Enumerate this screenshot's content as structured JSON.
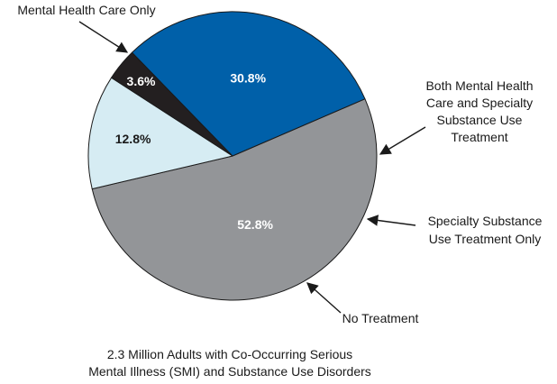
{
  "chart_data": {
    "type": "pie",
    "caption": [
      "2.3 Million Adults with Co-Occurring Serious",
      "Mental Illness (SMI) and Substance Use Disorders"
    ],
    "slices": [
      {
        "value": 52.8,
        "value_label": "52.8%",
        "category": [
          "Mental Health Care Only"
        ],
        "color": "#939598",
        "label_color": "#ffffff"
      },
      {
        "value": 12.8,
        "value_label": "12.8%",
        "category": [
          "Both Mental Health",
          "Care and Specialty",
          "Substance Use",
          "Treatment"
        ],
        "color": "#d6ecf3",
        "label_color": "#1a1a1a"
      },
      {
        "value": 3.6,
        "value_label": "3.6%",
        "category": [
          "Specialty Substance",
          "Use Treatment Only"
        ],
        "color": "#231f20",
        "label_color": "#ffffff"
      },
      {
        "value": 30.8,
        "value_label": "30.8%",
        "category": [
          "No Treatment"
        ],
        "color": "#0060a9",
        "label_color": "#ffffff"
      }
    ],
    "outline_color": "#1a1a1a",
    "arrow_color": "#1a1a1a"
  }
}
